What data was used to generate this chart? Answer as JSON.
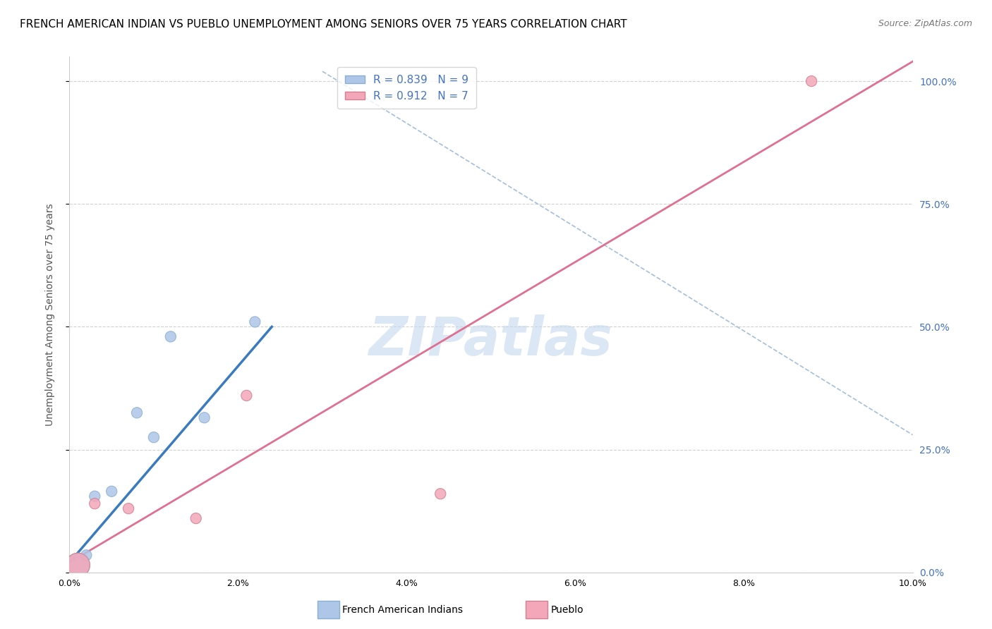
{
  "title": "FRENCH AMERICAN INDIAN VS PUEBLO UNEMPLOYMENT AMONG SENIORS OVER 75 YEARS CORRELATION CHART",
  "source": "Source: ZipAtlas.com",
  "ylabel": "Unemployment Among Seniors over 75 years",
  "xmin": 0.0,
  "xmax": 0.1,
  "ymin": 0.0,
  "ymax": 1.05,
  "xticks": [
    0.0,
    0.02,
    0.04,
    0.06,
    0.08,
    0.1
  ],
  "yticks_right": [
    0.0,
    0.25,
    0.5,
    0.75,
    1.0
  ],
  "ytick_right_labels": [
    "0.0%",
    "25.0%",
    "50.0%",
    "75.0%",
    "100.0%"
  ],
  "xtick_labels": [
    "0.0%",
    "2.0%",
    "4.0%",
    "6.0%",
    "8.0%",
    "10.0%"
  ],
  "watermark": "ZIPatlas",
  "blue_scatter_x": [
    0.001,
    0.002,
    0.003,
    0.005,
    0.008,
    0.01,
    0.012,
    0.016,
    0.022
  ],
  "blue_scatter_y": [
    0.015,
    0.035,
    0.155,
    0.165,
    0.325,
    0.275,
    0.48,
    0.315,
    0.51
  ],
  "blue_scatter_size": [
    600,
    120,
    120,
    120,
    120,
    120,
    120,
    120,
    120
  ],
  "pink_scatter_x": [
    0.001,
    0.003,
    0.007,
    0.015,
    0.021,
    0.044,
    0.088
  ],
  "pink_scatter_y": [
    0.015,
    0.14,
    0.13,
    0.11,
    0.36,
    0.16,
    1.0
  ],
  "pink_scatter_size": [
    600,
    120,
    120,
    120,
    120,
    120,
    120
  ],
  "blue_line_x": [
    0.0,
    0.024
  ],
  "blue_line_y": [
    0.02,
    0.5
  ],
  "pink_line_x": [
    0.0,
    0.1
  ],
  "pink_line_y": [
    0.02,
    1.04
  ],
  "diag_line_x": [
    0.03,
    0.1
  ],
  "diag_line_y": [
    0.99,
    0.3
  ],
  "blue_line_color": "#3a7abf",
  "pink_line_color": "#e07090",
  "diagonal_line_color": "#9ab8d8",
  "background_color": "#ffffff",
  "grid_color": "#cccccc",
  "title_fontsize": 11,
  "source_fontsize": 9,
  "axis_label_fontsize": 10,
  "tick_fontsize": 9,
  "legend_fontsize": 11,
  "watermark_color": "#c5d8f0",
  "watermark_fontsize": 55,
  "right_axis_color": "#4472c4",
  "legend_R1": "R = 0.839",
  "legend_N1": "N = 9",
  "legend_R2": "R = 0.912",
  "legend_N2": "N = 7",
  "bottom_legend_label1": "French American Indians",
  "bottom_legend_label2": "Pueblo"
}
